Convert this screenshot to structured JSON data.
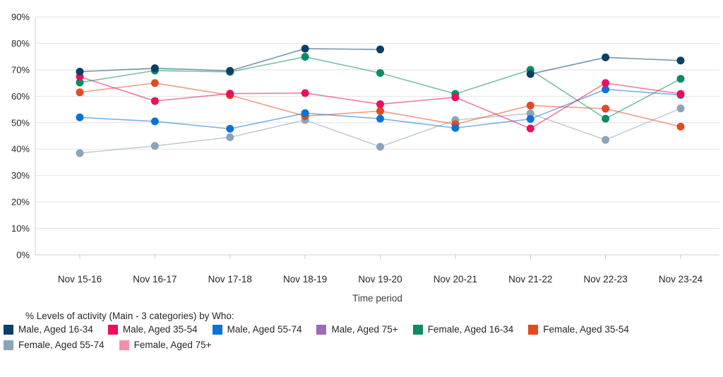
{
  "chart_data": {
    "type": "line",
    "title": "% Levels of activity (Main - 3 categories) by Who:",
    "xlabel": "Time period",
    "ylabel": "",
    "ylim": [
      0,
      90
    ],
    "yticks": [
      0,
      10,
      20,
      30,
      40,
      50,
      60,
      70,
      80,
      90
    ],
    "ytick_suffix": "%",
    "grid": true,
    "legend_position": "bottom-left",
    "categories": [
      "Nov 15-16",
      "Nov 16-17",
      "Nov 17-18",
      "Nov 18-19",
      "Nov 19-20",
      "Nov 20-21",
      "Nov 21-22",
      "Nov 22-23",
      "Nov 23-24"
    ],
    "series": [
      {
        "name": "Male, Aged 16-34",
        "color": "#0c3f66",
        "values": [
          69.3,
          70.6,
          69.6,
          78.0,
          77.7,
          null,
          68.4,
          74.7,
          73.5
        ]
      },
      {
        "name": "Male, Aged 35-54",
        "color": "#ec0e5e",
        "values": [
          67.4,
          58.2,
          61.0,
          61.2,
          57.0,
          59.6,
          47.8,
          65.0,
          60.9
        ]
      },
      {
        "name": "Male, Aged 55-74",
        "color": "#0d72d8",
        "values": [
          52.0,
          50.5,
          47.7,
          53.6,
          51.5,
          48.0,
          51.4,
          62.6,
          60.5
        ]
      },
      {
        "name": "Male, Aged 75+",
        "color": "#9c6bb3",
        "values": [
          null,
          null,
          null,
          null,
          null,
          null,
          null,
          null,
          null
        ]
      },
      {
        "name": "Female, Aged 16-34",
        "color": "#0c8b64",
        "values": [
          65.2,
          69.7,
          69.2,
          74.9,
          68.8,
          60.9,
          70.0,
          51.5,
          66.6
        ]
      },
      {
        "name": "Female, Aged 35-54",
        "color": "#e24a20",
        "values": [
          61.5,
          65.0,
          60.4,
          52.5,
          54.4,
          49.4,
          56.5,
          55.3,
          48.5
        ]
      },
      {
        "name": "Female, Aged 55-74",
        "color": "#8ba4ba",
        "values": [
          38.5,
          41.2,
          44.5,
          51.0,
          40.9,
          51.0,
          53.5,
          43.5,
          55.4
        ]
      },
      {
        "name": "Female, Aged 75+",
        "color": "#f28fab",
        "values": [
          null,
          null,
          null,
          null,
          null,
          null,
          null,
          null,
          null
        ]
      }
    ],
    "style": {
      "gridline_color": "#e3e3e3",
      "axis_line_color": "#d0d0d0",
      "tick_color": "#c9c9c9",
      "text_color": "#262626",
      "line_opacity": 0.55
    }
  }
}
